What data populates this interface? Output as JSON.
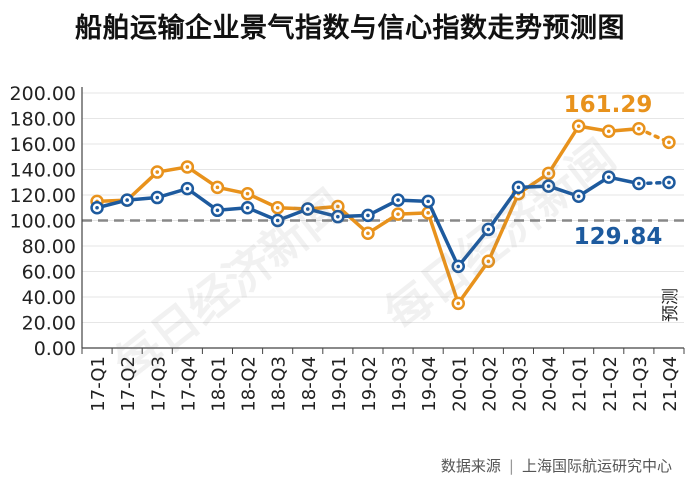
{
  "chart_data": {
    "type": "line",
    "title": "船舶运输企业景气指数与信心指数走势预测图",
    "categories": [
      "17-Q1",
      "17-Q2",
      "17-Q3",
      "17-Q4",
      "18-Q1",
      "18-Q2",
      "18-Q3",
      "18-Q4",
      "19-Q1",
      "19-Q2",
      "19-Q3",
      "19-Q4",
      "20-Q1",
      "20-Q2",
      "20-Q3",
      "20-Q4",
      "21-Q1",
      "21-Q2",
      "21-Q3",
      "21-Q4"
    ],
    "forecast_label": "预测",
    "series": [
      {
        "color": "#E8921C",
        "values": [
          115,
          116,
          138,
          142,
          126,
          121,
          110,
          109,
          111,
          90,
          105,
          106,
          35,
          68,
          121,
          137,
          174,
          170,
          172,
          161.29
        ]
      },
      {
        "color": "#1D5A9E",
        "values": [
          110,
          116,
          118,
          125,
          108,
          110,
          100,
          109,
          103,
          104,
          116,
          115,
          64,
          93,
          126,
          127,
          119,
          134,
          129,
          129.84
        ]
      }
    ],
    "annotations": [
      {
        "text": "161.29",
        "color": "#E8921C"
      },
      {
        "text": "129.84",
        "color": "#1D5A9E"
      }
    ],
    "yticks": [
      "200.00",
      "180.00",
      "160.00",
      "140.00",
      "120.00",
      "100.00",
      "80.00",
      "60.00",
      "40.00",
      "20.00",
      "0.00"
    ],
    "ylim": [
      0,
      200
    ],
    "reference_line": 100
  },
  "source": {
    "label": "数据来源",
    "org": "上海国际航运研究中心"
  },
  "watermark": [
    "每日经济新闻",
    "每日经济新闻"
  ]
}
